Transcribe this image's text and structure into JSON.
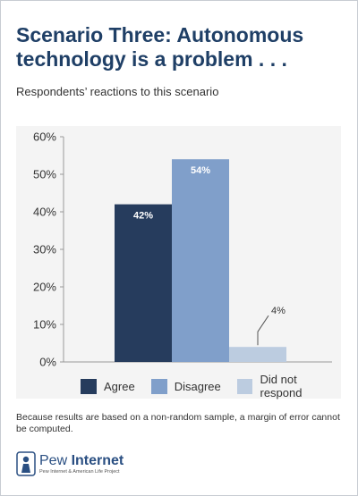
{
  "header": {
    "title": "Scenario Three: Autonomous technology is a problem . . .",
    "subtitle": "Respondents’ reactions to this scenario"
  },
  "chart_data": {
    "type": "bar",
    "categories": [
      "Agree",
      "Disagree",
      "Did not respond"
    ],
    "values": [
      42,
      54,
      4
    ],
    "data_labels": [
      "42%",
      "54%",
      "4%"
    ],
    "colors": [
      "#263c5d",
      "#809fca",
      "#bccce0"
    ],
    "label_colors": [
      "#ffffff",
      "#ffffff",
      "#333333"
    ],
    "ylim": [
      0,
      60
    ],
    "yticks": [
      "0%",
      "10%",
      "20%",
      "30%",
      "40%",
      "50%",
      "60%"
    ],
    "grid": false,
    "legend_position": "bottom"
  },
  "legend": {
    "items": [
      {
        "label": "Agree",
        "color": "#263c5d"
      },
      {
        "label": "Disagree",
        "color": "#809fca"
      },
      {
        "label": "Did not respond",
        "color": "#bccce0"
      }
    ]
  },
  "footnote": "Because results are based on a non-random sample, a margin of error cannot be computed.",
  "logo": {
    "name_light": "Pew ",
    "name_bold": "Internet",
    "tagline": "Pew Internet & American Life Project"
  }
}
